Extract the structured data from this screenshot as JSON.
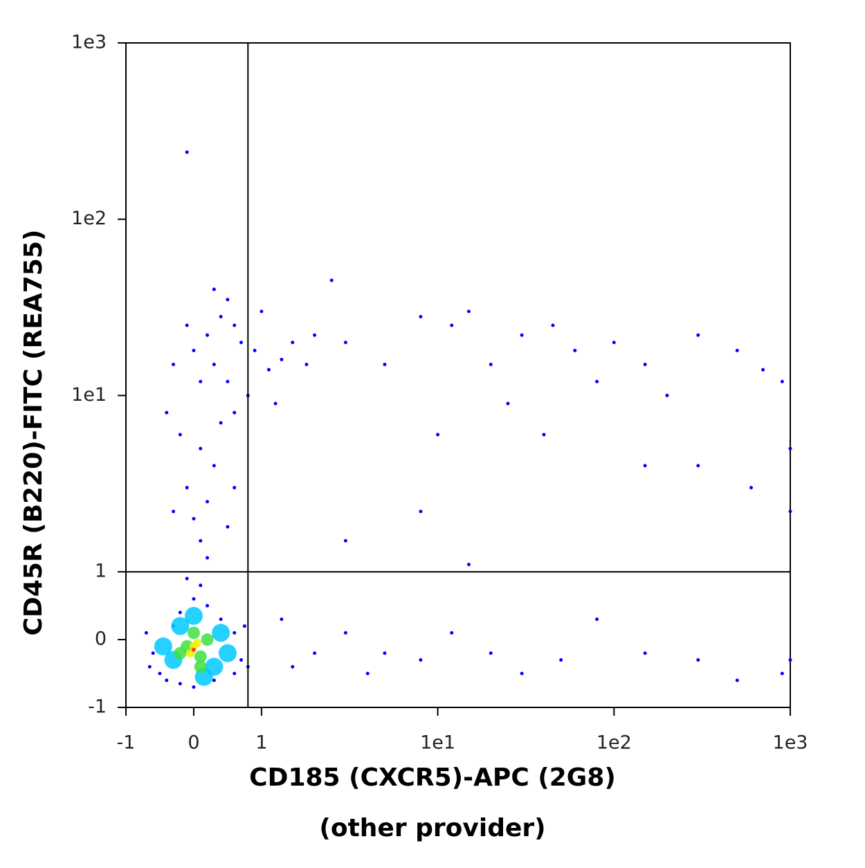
{
  "chart_data": {
    "type": "scatter",
    "xlabel": [
      "CD185 (CXCR5)-APC (2G8)",
      "(other provider)"
    ],
    "ylabel": "CD45R (B220)-FITC (REA755)",
    "xscale": "biexponential",
    "yscale": "biexponential",
    "xlim": [
      -1,
      1000
    ],
    "ylim": [
      -1,
      1000
    ],
    "xticks": [
      -1,
      0,
      1,
      {
        "value": 10,
        "label": "1e1"
      },
      {
        "value": 100,
        "label": "1e2"
      },
      {
        "value": 1000,
        "label": "1e3"
      }
    ],
    "yticks": [
      -1,
      0,
      1,
      {
        "value": 10,
        "label": "1e1"
      },
      {
        "value": 100,
        "label": "1e2"
      },
      {
        "value": 1000,
        "label": "1e3"
      }
    ],
    "quadrant_x": 0.8,
    "quadrant_y": 1,
    "series": [
      {
        "color": "#0000ff",
        "x": [
          -0.6,
          -0.5,
          -0.4,
          -0.3,
          -0.2,
          0,
          0.2,
          0.4,
          0.6,
          0.7,
          0.6,
          0.3,
          0,
          -0.2,
          0.8,
          0.75,
          -0.7,
          -0.65,
          0.1,
          -0.1,
          0.2,
          0.1,
          0,
          0.2,
          -0.1,
          0.3,
          0.1,
          -0.3,
          0.5,
          0.6,
          -0.2,
          0.4,
          0.3,
          0.5,
          0.7,
          0.9,
          1.1,
          0.2,
          0.4,
          0.6,
          1.3,
          0.1,
          0,
          -0.1,
          0.8,
          1.0,
          1.5,
          0.5,
          0.3,
          1.2,
          0.6,
          1.8,
          2,
          -0.3,
          -0.4,
          -0.1,
          2.5,
          3,
          5,
          8,
          12,
          15,
          20,
          25,
          30,
          45,
          60,
          80,
          100,
          150,
          200,
          300,
          500,
          700,
          900,
          1000,
          10,
          40,
          150,
          300,
          600,
          1000,
          8,
          3,
          15,
          2,
          3,
          5,
          8,
          12,
          20,
          30,
          50,
          80,
          150,
          300,
          500,
          900,
          1000,
          4,
          1.5,
          1.3
        ],
        "y": [
          -0.2,
          -0.5,
          -0.6,
          0.2,
          0.4,
          0.6,
          0.5,
          0.3,
          0.1,
          -0.3,
          -0.5,
          -0.6,
          -0.7,
          -0.65,
          -0.4,
          0.2,
          0.1,
          -0.4,
          0.8,
          0.9,
          1.2,
          1.5,
          2,
          2.5,
          3,
          4,
          5,
          2.2,
          1.8,
          3,
          6,
          7,
          15,
          12,
          20,
          18,
          14,
          22,
          28,
          25,
          16,
          12,
          18,
          25,
          10,
          30,
          20,
          35,
          40,
          9,
          8,
          15,
          22,
          15,
          8,
          240,
          45,
          20,
          15,
          28,
          25,
          30,
          15,
          9,
          22,
          25,
          18,
          12,
          20,
          15,
          10,
          22,
          18,
          14,
          12,
          5,
          6,
          6,
          4,
          4,
          3,
          2.2,
          2.2,
          1.5,
          1.1,
          -0.2,
          0.1,
          -0.2,
          -0.3,
          0.1,
          -0.2,
          -0.5,
          -0.3,
          0.3,
          -0.2,
          -0.3,
          -0.6,
          -0.5,
          -0.3,
          -0.5,
          -0.4,
          0.3
        ]
      },
      {
        "color": "#00c8ff",
        "x": [
          -0.3,
          0.3,
          0.4,
          -0.2,
          0,
          0.5,
          -0.45,
          0.15
        ],
        "y": [
          -0.3,
          -0.4,
          0.1,
          0.2,
          0.35,
          -0.2,
          -0.1,
          -0.55
        ]
      },
      {
        "color": "#40e040",
        "x": [
          -0.1,
          0.1,
          0.2,
          -0.2,
          0,
          0.1
        ],
        "y": [
          -0.1,
          -0.25,
          0,
          -0.2,
          0.1,
          -0.4
        ]
      },
      {
        "color": "#f0f000",
        "x": [
          0,
          -0.05,
          0.05
        ],
        "y": [
          -0.1,
          -0.2,
          -0.05
        ]
      },
      {
        "color": "#ff2000",
        "x": [
          0
        ],
        "y": [
          -0.15
        ]
      }
    ]
  }
}
